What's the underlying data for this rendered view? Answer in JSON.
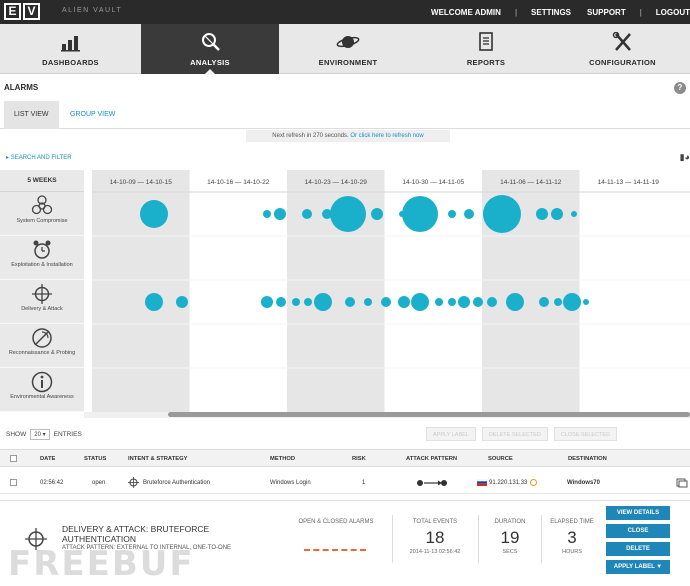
{
  "brand": {
    "logo_letters": [
      "E",
      "V"
    ],
    "name": "ALIEN VAULT"
  },
  "topnav": {
    "welcome": "WELCOME ADMIN",
    "settings": "SETTINGS",
    "support": "SUPPORT",
    "logout": "LOGOUT"
  },
  "mainnav": {
    "tabs": [
      {
        "label": "DASHBOARDS",
        "icon": "bar-chart-icon"
      },
      {
        "label": "ANALYSIS",
        "icon": "magnifier-icon",
        "active": true
      },
      {
        "label": "ENVIRONMENT",
        "icon": "planet-icon"
      },
      {
        "label": "REPORTS",
        "icon": "document-icon"
      },
      {
        "label": "CONFIGURATION",
        "icon": "tools-icon"
      }
    ]
  },
  "section": {
    "title": "ALARMS",
    "help": "?"
  },
  "views": {
    "list": "LIST VIEW",
    "group": "GROUP VIEW"
  },
  "refresh": {
    "text": "Next refresh in 270 seconds.",
    "link": "Or click here to refresh now"
  },
  "filter": {
    "label": "SEARCH AND FILTER"
  },
  "timeline": {
    "range_label": "5 WEEKS",
    "weeks": [
      "14-10-09 — 14-10-15",
      "14-10-16 — 14-10-22",
      "14-10-23 — 14-10-29",
      "14-10-30 — 14-11-05",
      "14-11-06 — 14-11-12",
      "14-11-13 — 14-11-19"
    ],
    "categories": [
      {
        "name": "System Compromise",
        "icon": "biohazard-icon"
      },
      {
        "name": "Exploitation & Installation",
        "icon": "alarm-clock-icon"
      },
      {
        "name": "Delivery & Attack",
        "icon": "crosshair-icon"
      },
      {
        "name": "Reconnaissance & Probing",
        "icon": "radar-icon"
      },
      {
        "name": "Environmental Awareness",
        "icon": "info-icon"
      }
    ],
    "colors": {
      "bubble": "#1ab0cc",
      "shade": "#e6e6e6"
    }
  },
  "table_controls": {
    "show": "SHOW",
    "show_value": "20",
    "entries": "ENTRIES",
    "apply_label": "APPLY LABEL",
    "delete_selected": "DELETE SELECTED",
    "close_selected": "CLOSE SELECTED"
  },
  "table": {
    "headers": [
      "DATE",
      "STATUS",
      "INTENT & STRATEGY",
      "METHOD",
      "RISK",
      "ATTACK PATTERN",
      "SOURCE",
      "DESTINATION"
    ],
    "rows": [
      {
        "date": "02:56:42",
        "status": "open",
        "intent": "Bruteforce Authentication",
        "method": "Windows Login",
        "risk": "1",
        "source": "91.220.131.33",
        "destination": "Windows70"
      }
    ]
  },
  "detail": {
    "title": "DELIVERY & ATTACK: BRUTEFORCE AUTHENTICATION",
    "subtitle": "ATTACK PATTERN: EXTERNAL TO INTERNAL, ONE-TO-ONE",
    "open_closed_label": "OPEN & CLOSED ALARMS",
    "total_events_label": "TOTAL EVENTS",
    "total_events": "18",
    "total_events_date": "2014-11-13 02:56:42",
    "duration_label": "DURATION",
    "duration": "19",
    "duration_unit": "SECS",
    "elapsed_label": "ELAPSED TIME",
    "elapsed": "3",
    "elapsed_unit": "HOURS",
    "buttons": {
      "view": "VIEW DETAILS",
      "close": "CLOSE",
      "delete": "DELETE",
      "apply": "APPLY LABEL ▼"
    }
  },
  "watermark": "FREEBUF"
}
